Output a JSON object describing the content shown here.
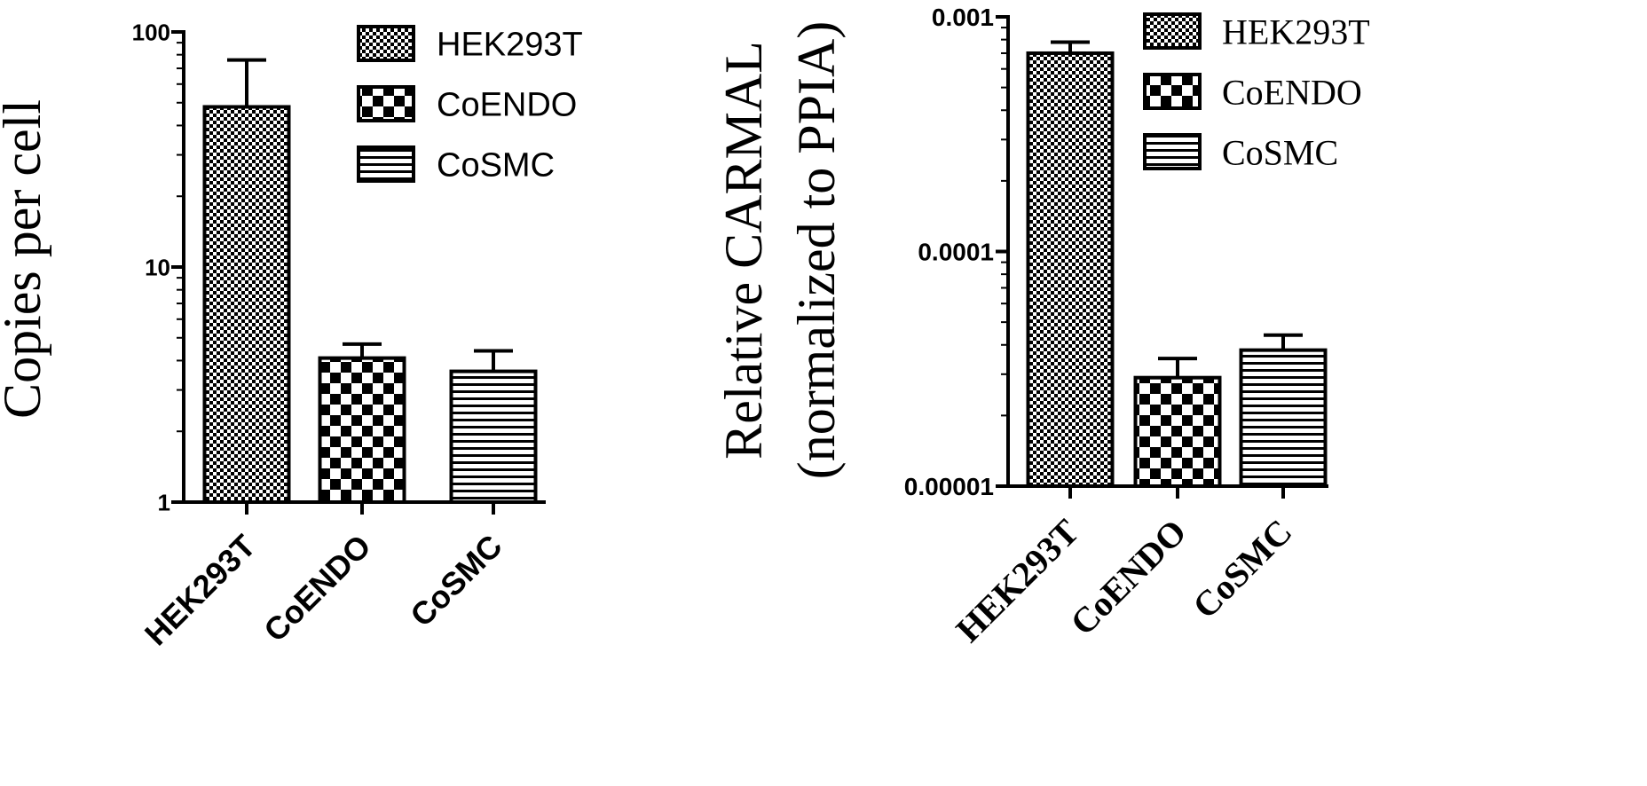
{
  "chart_data": [
    {
      "type": "bar",
      "ylabel": "Copies per cell",
      "yscale": "log",
      "ylim": [
        1,
        100
      ],
      "yticks": [
        "1",
        "10",
        "100"
      ],
      "categories": [
        "HEK293T",
        "CoENDO",
        "CoSMC"
      ],
      "values": [
        48,
        4.1,
        3.6
      ],
      "error_upper": [
        76,
        4.7,
        4.4
      ],
      "legend": [
        "HEK293T",
        "CoENDO",
        "CoSMC"
      ],
      "legend_position": "top-right",
      "patterns": [
        "fine-check",
        "coarse-check",
        "horizontal-lines"
      ],
      "grid": false
    },
    {
      "type": "bar",
      "ylabel": [
        "Relative CARMAL",
        "(normalized to PPIA)"
      ],
      "yscale": "log",
      "ylim": [
        1e-05,
        0.001
      ],
      "yticks": [
        "0.00001",
        "0.0001",
        "0.001"
      ],
      "categories": [
        "HEK293T",
        "CoENDO",
        "CoSMC"
      ],
      "values": [
        0.0007,
        2.9e-05,
        3.8e-05
      ],
      "error_upper": [
        0.00078,
        3.5e-05,
        4.4e-05
      ],
      "legend": [
        "HEK293T",
        "CoENDO",
        "CoSMC"
      ],
      "legend_position": "top-right",
      "patterns": [
        "fine-check",
        "coarse-check",
        "horizontal-lines"
      ],
      "grid": false
    }
  ]
}
